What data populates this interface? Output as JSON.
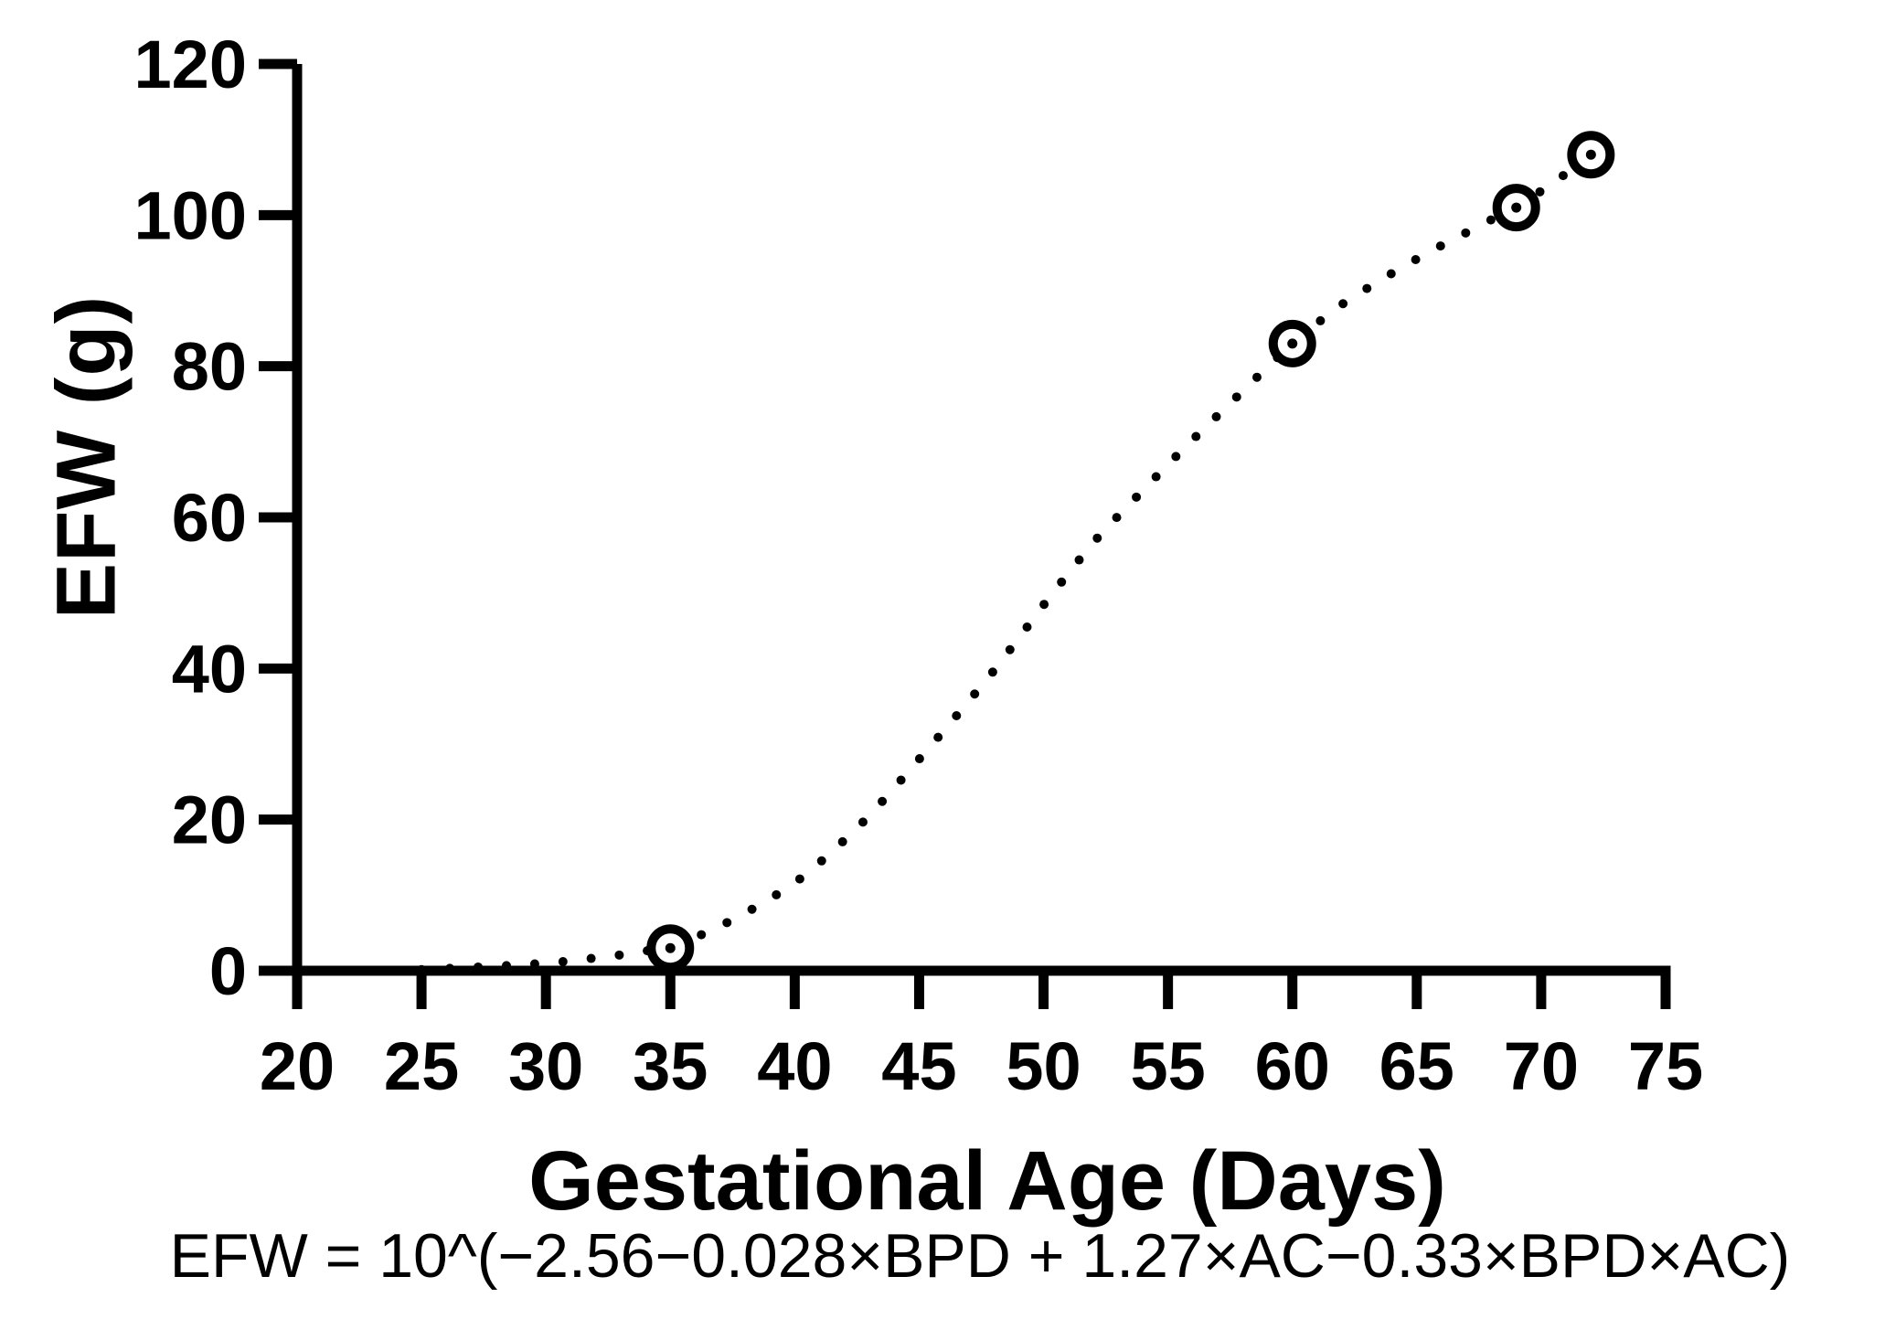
{
  "page": {
    "background": "#ffffff",
    "ink": "#000000"
  },
  "chart_data": {
    "type": "scatter",
    "title": "",
    "xlabel": "Gestational Age (Days)",
    "ylabel": "EFW (g)",
    "caption": "EFW = 10^(−2.56−0.028×BPD + 1.27×AC−0.33×BPD×AC)",
    "xlim": [
      20,
      75
    ],
    "ylim": [
      0,
      120
    ],
    "x_ticks": [
      20,
      25,
      30,
      35,
      40,
      45,
      50,
      55,
      60,
      65,
      70,
      75
    ],
    "y_ticks": [
      0,
      20,
      40,
      60,
      80,
      100,
      120
    ],
    "grid": false,
    "legend": null,
    "marker": {
      "shape": "open-circle-with-center-dot",
      "fill": "#ffffff",
      "stroke": "#000000"
    },
    "points": [
      {
        "x": 35,
        "y": 3
      },
      {
        "x": 60,
        "y": 83
      },
      {
        "x": 69,
        "y": 101
      },
      {
        "x": 72,
        "y": 108
      }
    ],
    "fit_curve": {
      "style": "dotted",
      "points": [
        [
          25,
          0.15
        ],
        [
          26,
          0.3
        ],
        [
          27,
          0.45
        ],
        [
          28,
          0.6
        ],
        [
          29,
          0.8
        ],
        [
          30,
          1.0
        ],
        [
          31,
          1.3
        ],
        [
          32,
          1.7
        ],
        [
          33,
          2.1
        ],
        [
          34,
          2.6
        ],
        [
          35,
          3.2
        ],
        [
          36,
          4.4
        ],
        [
          37,
          5.9
        ],
        [
          38,
          7.6
        ],
        [
          39,
          9.5
        ],
        [
          40,
          11.6
        ],
        [
          41,
          14.3
        ],
        [
          42,
          17.3
        ],
        [
          43,
          20.5
        ],
        [
          44,
          24.2
        ],
        [
          45,
          28.0
        ],
        [
          46,
          31.8
        ],
        [
          47,
          35.7
        ],
        [
          48,
          39.7
        ],
        [
          49,
          44.0
        ],
        [
          50,
          48.4
        ],
        [
          51,
          52.6
        ],
        [
          52,
          56.7
        ],
        [
          53,
          60.2
        ],
        [
          54,
          63.6
        ],
        [
          55,
          67.0
        ],
        [
          56,
          70.3
        ],
        [
          57,
          73.5
        ],
        [
          58,
          76.7
        ],
        [
          59,
          79.9
        ],
        [
          60,
          83.0
        ],
        [
          61,
          85.7
        ],
        [
          62,
          88.2
        ],
        [
          63,
          90.3
        ],
        [
          64,
          92.3
        ],
        [
          65,
          94.2
        ],
        [
          66,
          96.0
        ],
        [
          67,
          97.7
        ],
        [
          68,
          99.4
        ],
        [
          69,
          101.0
        ],
        [
          70,
          103.2
        ],
        [
          71,
          105.5
        ],
        [
          72,
          108.0
        ]
      ]
    }
  }
}
